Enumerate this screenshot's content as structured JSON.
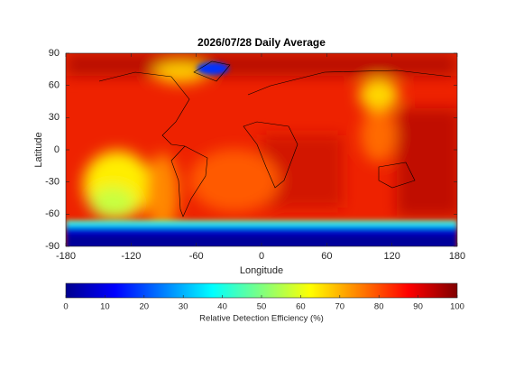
{
  "chart_data": {
    "type": "map",
    "title": "2026/07/28 Daily Average",
    "x_label": "Longitude",
    "y_label": "Latitude",
    "xlim": [
      -180,
      180
    ],
    "xticks": [
      -180,
      -120,
      -60,
      0,
      60,
      120,
      180
    ],
    "ylim": [
      -90,
      90
    ],
    "yticks": [
      -90,
      -60,
      -30,
      0,
      30,
      60,
      90
    ],
    "colorbar": {
      "label": "Relative Detection Efficiency (%)",
      "lim": [
        0,
        100
      ],
      "ticks": [
        0,
        10,
        20,
        30,
        40,
        50,
        60,
        70,
        80,
        90,
        100
      ],
      "colormap": "jet"
    }
  }
}
